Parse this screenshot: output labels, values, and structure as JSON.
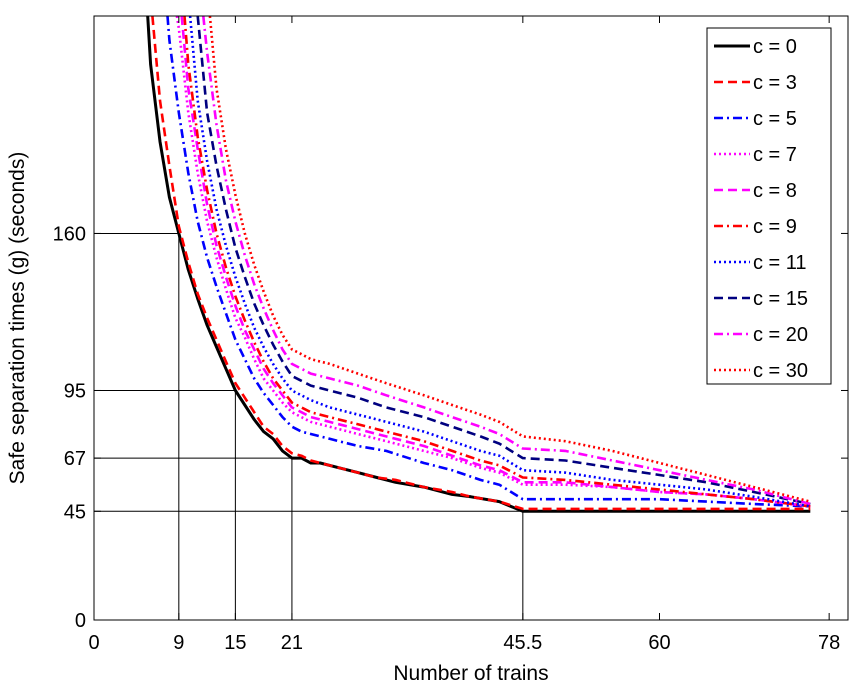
{
  "chart_data": {
    "type": "line",
    "xlabel": "Number of trains",
    "ylabel": "Safe separation times (g) (seconds)",
    "xlim": [
      0,
      80
    ],
    "ylim": [
      0,
      250
    ],
    "xticks": [
      0,
      9,
      15,
      21,
      45.5,
      60,
      78
    ],
    "xtick_labels": [
      "0",
      "9",
      "15",
      "21",
      "45.5",
      "60",
      "78"
    ],
    "yticks": [
      0,
      45,
      67,
      95,
      160
    ],
    "ytick_labels": [
      "0",
      "45",
      "67",
      "95",
      "160"
    ],
    "reference_lines": [
      {
        "x": 9,
        "y": 160
      },
      {
        "x": 15,
        "y": 95
      },
      {
        "x": 21,
        "y": 67
      },
      {
        "x": 45.5,
        "y": 45
      }
    ],
    "legend_position": "top-right",
    "series": [
      {
        "name": "c = 0",
        "color": "#000000",
        "dash": "solid",
        "points": [
          [
            5.7,
            250
          ],
          [
            6,
            230
          ],
          [
            7,
            198
          ],
          [
            8,
            175
          ],
          [
            9,
            160
          ],
          [
            10,
            145
          ],
          [
            11,
            133
          ],
          [
            12,
            122
          ],
          [
            13,
            113
          ],
          [
            14,
            104
          ],
          [
            15,
            95
          ],
          [
            16,
            89
          ],
          [
            17,
            83
          ],
          [
            18,
            78
          ],
          [
            19,
            75
          ],
          [
            20,
            70
          ],
          [
            21,
            67
          ],
          [
            22,
            67
          ],
          [
            23,
            65
          ],
          [
            24,
            65
          ],
          [
            26,
            63
          ],
          [
            28,
            61
          ],
          [
            30,
            59
          ],
          [
            32,
            57
          ],
          [
            35,
            55
          ],
          [
            38,
            52
          ],
          [
            40,
            51
          ],
          [
            43,
            49
          ],
          [
            45.5,
            45
          ],
          [
            47,
            45
          ],
          [
            50,
            45
          ],
          [
            55,
            45
          ],
          [
            60,
            45
          ],
          [
            65,
            45
          ],
          [
            70,
            45
          ],
          [
            75,
            45
          ],
          [
            76,
            45
          ]
        ]
      },
      {
        "name": "c = 3",
        "color": "#ff0000",
        "dash": "dash",
        "points": [
          [
            6.2,
            250
          ],
          [
            7,
            215
          ],
          [
            8,
            188
          ],
          [
            9,
            163
          ],
          [
            10,
            148
          ],
          [
            11,
            135
          ],
          [
            12,
            125
          ],
          [
            13,
            116
          ],
          [
            14,
            107
          ],
          [
            15,
            98
          ],
          [
            16,
            92
          ],
          [
            17,
            86
          ],
          [
            18,
            80
          ],
          [
            19,
            77
          ],
          [
            20,
            72
          ],
          [
            21,
            69
          ],
          [
            22,
            68
          ],
          [
            23,
            66
          ],
          [
            24,
            65
          ],
          [
            26,
            63
          ],
          [
            28,
            61
          ],
          [
            30,
            59
          ],
          [
            32,
            58
          ],
          [
            35,
            55
          ],
          [
            38,
            53
          ],
          [
            40,
            51
          ],
          [
            43,
            49
          ],
          [
            45.5,
            46
          ],
          [
            47,
            46
          ],
          [
            50,
            46
          ],
          [
            55,
            46
          ],
          [
            60,
            46
          ],
          [
            65,
            46
          ],
          [
            70,
            46
          ],
          [
            76,
            46
          ]
        ]
      },
      {
        "name": "c = 5",
        "color": "#0000ff",
        "dash": "dashdot",
        "points": [
          [
            7.8,
            250
          ],
          [
            8,
            240
          ],
          [
            9,
            210
          ],
          [
            10,
            185
          ],
          [
            11,
            165
          ],
          [
            12,
            150
          ],
          [
            13,
            138
          ],
          [
            14,
            127
          ],
          [
            15,
            116
          ],
          [
            16,
            108
          ],
          [
            17,
            100
          ],
          [
            18,
            94
          ],
          [
            19,
            89
          ],
          [
            20,
            84
          ],
          [
            21,
            80
          ],
          [
            22,
            78
          ],
          [
            23,
            77
          ],
          [
            25,
            75
          ],
          [
            28,
            72
          ],
          [
            31,
            70
          ],
          [
            35,
            65
          ],
          [
            38,
            62
          ],
          [
            41,
            58
          ],
          [
            43,
            56
          ],
          [
            45.5,
            50
          ],
          [
            47,
            50
          ],
          [
            50,
            50
          ],
          [
            55,
            50
          ],
          [
            60,
            50
          ],
          [
            65,
            49
          ],
          [
            70,
            48
          ],
          [
            76,
            47
          ]
        ]
      },
      {
        "name": "c = 7",
        "color": "#ff00ff",
        "dash": "dot",
        "points": [
          [
            8.8,
            250
          ],
          [
            9,
            245
          ],
          [
            10,
            210
          ],
          [
            11,
            185
          ],
          [
            12,
            165
          ],
          [
            13,
            150
          ],
          [
            14,
            137
          ],
          [
            15,
            125
          ],
          [
            16,
            117
          ],
          [
            17,
            108
          ],
          [
            18,
            100
          ],
          [
            19,
            95
          ],
          [
            20,
            90
          ],
          [
            21,
            86
          ],
          [
            22,
            84
          ],
          [
            23,
            82
          ],
          [
            25,
            80
          ],
          [
            28,
            77
          ],
          [
            31,
            74
          ],
          [
            35,
            70
          ],
          [
            38,
            67
          ],
          [
            41,
            63
          ],
          [
            43,
            61
          ],
          [
            45.5,
            56
          ],
          [
            50,
            56
          ],
          [
            55,
            55
          ],
          [
            60,
            53
          ],
          [
            65,
            52
          ],
          [
            70,
            50
          ],
          [
            76,
            47
          ]
        ]
      },
      {
        "name": "c = 8",
        "color": "#ff00ff",
        "dash": "dash",
        "points": [
          [
            9.3,
            250
          ],
          [
            10,
            220
          ],
          [
            11,
            195
          ],
          [
            12,
            172
          ],
          [
            13,
            155
          ],
          [
            14,
            142
          ],
          [
            15,
            130
          ],
          [
            16,
            120
          ],
          [
            17,
            112
          ],
          [
            18,
            104
          ],
          [
            19,
            98
          ],
          [
            20,
            93
          ],
          [
            21,
            88
          ],
          [
            22,
            86
          ],
          [
            23,
            84
          ],
          [
            25,
            82
          ],
          [
            28,
            79
          ],
          [
            31,
            76
          ],
          [
            35,
            72
          ],
          [
            38,
            68
          ],
          [
            41,
            64
          ],
          [
            43,
            62
          ],
          [
            45.5,
            57
          ],
          [
            50,
            57
          ],
          [
            55,
            55
          ],
          [
            60,
            53
          ],
          [
            65,
            52
          ],
          [
            70,
            50
          ],
          [
            76,
            47
          ]
        ]
      },
      {
        "name": "c = 9",
        "color": "#ff0000",
        "dash": "dashdot",
        "points": [
          [
            9.6,
            250
          ],
          [
            10,
            230
          ],
          [
            11,
            200
          ],
          [
            12,
            178
          ],
          [
            13,
            160
          ],
          [
            14,
            146
          ],
          [
            15,
            134
          ],
          [
            16,
            124
          ],
          [
            17,
            115
          ],
          [
            18,
            107
          ],
          [
            19,
            100
          ],
          [
            20,
            95
          ],
          [
            21,
            90
          ],
          [
            22,
            88
          ],
          [
            23,
            86
          ],
          [
            25,
            84
          ],
          [
            28,
            81
          ],
          [
            31,
            78
          ],
          [
            35,
            74
          ],
          [
            38,
            70
          ],
          [
            41,
            66
          ],
          [
            43,
            64
          ],
          [
            45.5,
            59
          ],
          [
            50,
            58
          ],
          [
            55,
            56
          ],
          [
            60,
            54
          ],
          [
            65,
            52
          ],
          [
            70,
            50
          ],
          [
            76,
            47
          ]
        ]
      },
      {
        "name": "c = 11",
        "color": "#0000ff",
        "dash": "dot",
        "points": [
          [
            10.2,
            250
          ],
          [
            11,
            215
          ],
          [
            12,
            190
          ],
          [
            13,
            170
          ],
          [
            14,
            155
          ],
          [
            15,
            142
          ],
          [
            16,
            131
          ],
          [
            17,
            121
          ],
          [
            18,
            113
          ],
          [
            19,
            106
          ],
          [
            20,
            100
          ],
          [
            21,
            95
          ],
          [
            22,
            93
          ],
          [
            23,
            91
          ],
          [
            25,
            88
          ],
          [
            28,
            85
          ],
          [
            31,
            82
          ],
          [
            35,
            78
          ],
          [
            38,
            74
          ],
          [
            41,
            70
          ],
          [
            43,
            68
          ],
          [
            45.5,
            62
          ],
          [
            50,
            61
          ],
          [
            55,
            58
          ],
          [
            60,
            56
          ],
          [
            65,
            54
          ],
          [
            70,
            51
          ],
          [
            76,
            47
          ]
        ]
      },
      {
        "name": "c = 15",
        "color": "#000080",
        "dash": "dash",
        "points": [
          [
            11,
            250
          ],
          [
            12,
            210
          ],
          [
            13,
            188
          ],
          [
            14,
            170
          ],
          [
            15,
            154
          ],
          [
            16,
            142
          ],
          [
            17,
            131
          ],
          [
            18,
            122
          ],
          [
            19,
            114
          ],
          [
            20,
            107
          ],
          [
            21,
            101
          ],
          [
            22,
            99
          ],
          [
            23,
            97
          ],
          [
            25,
            95
          ],
          [
            28,
            92
          ],
          [
            31,
            88
          ],
          [
            35,
            84
          ],
          [
            38,
            80
          ],
          [
            41,
            76
          ],
          [
            43,
            73
          ],
          [
            45.5,
            67
          ],
          [
            50,
            66
          ],
          [
            55,
            63
          ],
          [
            60,
            60
          ],
          [
            65,
            57
          ],
          [
            70,
            53
          ],
          [
            76,
            48
          ]
        ]
      },
      {
        "name": "c = 20",
        "color": "#ff00ff",
        "dash": "dashdot",
        "points": [
          [
            11.6,
            250
          ],
          [
            12,
            235
          ],
          [
            13,
            205
          ],
          [
            14,
            182
          ],
          [
            15,
            165
          ],
          [
            16,
            151
          ],
          [
            17,
            139
          ],
          [
            18,
            129
          ],
          [
            19,
            120
          ],
          [
            20,
            112
          ],
          [
            21,
            106
          ],
          [
            22,
            104
          ],
          [
            23,
            102
          ],
          [
            25,
            100
          ],
          [
            28,
            97
          ],
          [
            31,
            93
          ],
          [
            35,
            88
          ],
          [
            38,
            84
          ],
          [
            41,
            80
          ],
          [
            43,
            77
          ],
          [
            45.5,
            71
          ],
          [
            50,
            70
          ],
          [
            55,
            66
          ],
          [
            60,
            62
          ],
          [
            65,
            58
          ],
          [
            70,
            54
          ],
          [
            76,
            48
          ]
        ]
      },
      {
        "name": "c = 30",
        "color": "#ff0000",
        "dash": "dot",
        "points": [
          [
            12.3,
            250
          ],
          [
            13,
            220
          ],
          [
            14,
            195
          ],
          [
            15,
            176
          ],
          [
            16,
            160
          ],
          [
            17,
            147
          ],
          [
            18,
            136
          ],
          [
            19,
            126
          ],
          [
            20,
            118
          ],
          [
            21,
            112
          ],
          [
            22,
            110
          ],
          [
            23,
            108
          ],
          [
            25,
            106
          ],
          [
            28,
            102
          ],
          [
            31,
            98
          ],
          [
            35,
            93
          ],
          [
            38,
            89
          ],
          [
            41,
            85
          ],
          [
            43,
            82
          ],
          [
            45.5,
            76
          ],
          [
            50,
            74
          ],
          [
            55,
            70
          ],
          [
            60,
            65
          ],
          [
            65,
            60
          ],
          [
            70,
            55
          ],
          [
            76,
            49
          ]
        ]
      }
    ]
  }
}
